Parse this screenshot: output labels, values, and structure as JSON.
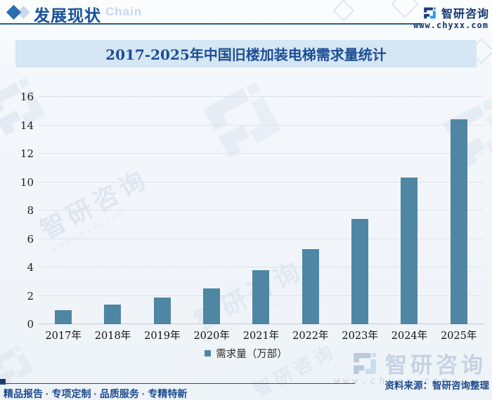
{
  "header": {
    "title": "发展现状",
    "chain_watermark": "Chain",
    "brand_name": "智研咨询",
    "brand_url": "www.chyxx.com"
  },
  "chart": {
    "title": "2017-2025年中国旧楼加装电梯需求量统计",
    "legend_label": "需求量（万部）"
  },
  "chart_data": {
    "type": "bar",
    "title": "2017-2025年中国旧楼加装电梯需求量统计",
    "categories": [
      "2017年",
      "2018年",
      "2019年",
      "2020年",
      "2021年",
      "2022年",
      "2023年",
      "2024年",
      "2025年"
    ],
    "values": [
      1.0,
      1.4,
      1.9,
      2.5,
      3.8,
      5.3,
      7.4,
      10.3,
      14.4
    ],
    "xlabel": "",
    "ylabel": "",
    "ylim": [
      0,
      16
    ],
    "ytick_step": 2,
    "grid": true,
    "legend": [
      "需求量（万部）"
    ],
    "legend_position": "bottom",
    "bar_color": "#4E86A3"
  },
  "watermark": {
    "text": "智研咨询",
    "url": "www.chyxx.com"
  },
  "footer": {
    "tagline": "精品报告 · 专项定制 · 品质服务 · 专精特新",
    "source": "资料来源：智研咨询整理",
    "brand_name": "智研咨询",
    "brand_url": "www.chyxx.com"
  },
  "colors": {
    "bar": "#4E86A3",
    "accent_dark_blue": "#1b4a8c",
    "title_text": "#1d4e94",
    "title_bar_bg": "#d5e6f4",
    "logo_dark": "#1e3a7a",
    "logo_bright": "#2e9be6"
  }
}
